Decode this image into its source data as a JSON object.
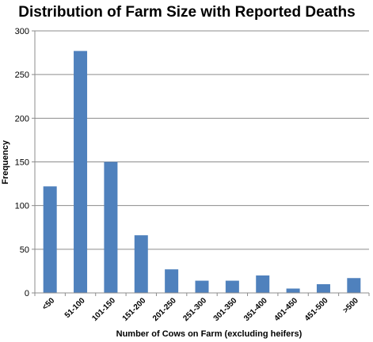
{
  "chart_data": {
    "type": "bar",
    "title": "Distribution of Farm Size with Reported Deaths",
    "xlabel": "Number of Cows on Farm (excluding heifers)",
    "ylabel": "Frequency",
    "categories": [
      "<50",
      "51-100",
      "101-150",
      "151-200",
      "201-250",
      "251-300",
      "301-350",
      "351-400",
      "401-450",
      "451-500",
      ">500"
    ],
    "values": [
      122,
      277,
      150,
      66,
      27,
      14,
      14,
      20,
      5,
      10,
      17
    ],
    "ylim": [
      0,
      300
    ],
    "yticks": [
      0,
      50,
      100,
      150,
      200,
      250,
      300
    ],
    "grid": true,
    "legend": "none",
    "bar_color": "#4f81bd"
  }
}
